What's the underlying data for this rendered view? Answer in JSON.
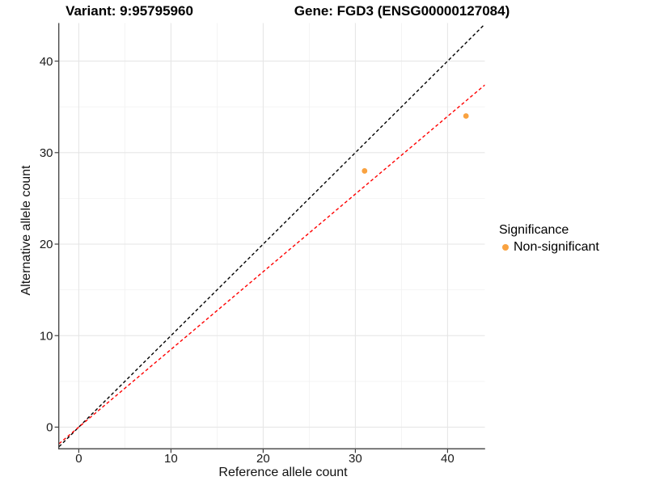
{
  "chart_data": {
    "type": "scatter",
    "titles": {
      "left": "Variant: 9:95795960",
      "right": "Gene: FGD3 (ENSG00000127084)"
    },
    "xlabel": "Reference allele count",
    "ylabel": "Alternative allele count",
    "xlim": [
      -2.14,
      44.04
    ],
    "ylim": [
      -2.35,
      44.0
    ],
    "x_ticks": [
      0,
      10,
      20,
      30,
      40
    ],
    "y_ticks": [
      0,
      10,
      20,
      30,
      40
    ],
    "x_minor_ticks": [
      5,
      15,
      25,
      35
    ],
    "y_minor_ticks": [
      5,
      15,
      25,
      35
    ],
    "grid": true,
    "series": [
      {
        "name": "Non-significant",
        "color": "#F9A240",
        "points": [
          {
            "x": 31,
            "y": 28
          },
          {
            "x": 42,
            "y": 34
          }
        ]
      }
    ],
    "lines": [
      {
        "name": "identity-line",
        "slope": 1.0,
        "intercept": 0,
        "color": "#000000",
        "style": "dashed"
      },
      {
        "name": "fitted-ratio-line",
        "slope": 0.849,
        "intercept": 0,
        "color": "#FF0000",
        "style": "dashed"
      }
    ],
    "legend": {
      "position": "right",
      "title": "Significance",
      "entries": [
        {
          "label": "Non-significant",
          "color": "#F9A240"
        }
      ]
    },
    "colors": {
      "major_grid": "#E6E6E6",
      "minor_grid": "#F2F2F2",
      "axis": "#3F3F3F",
      "tick_text": "#1A1A1A"
    }
  }
}
